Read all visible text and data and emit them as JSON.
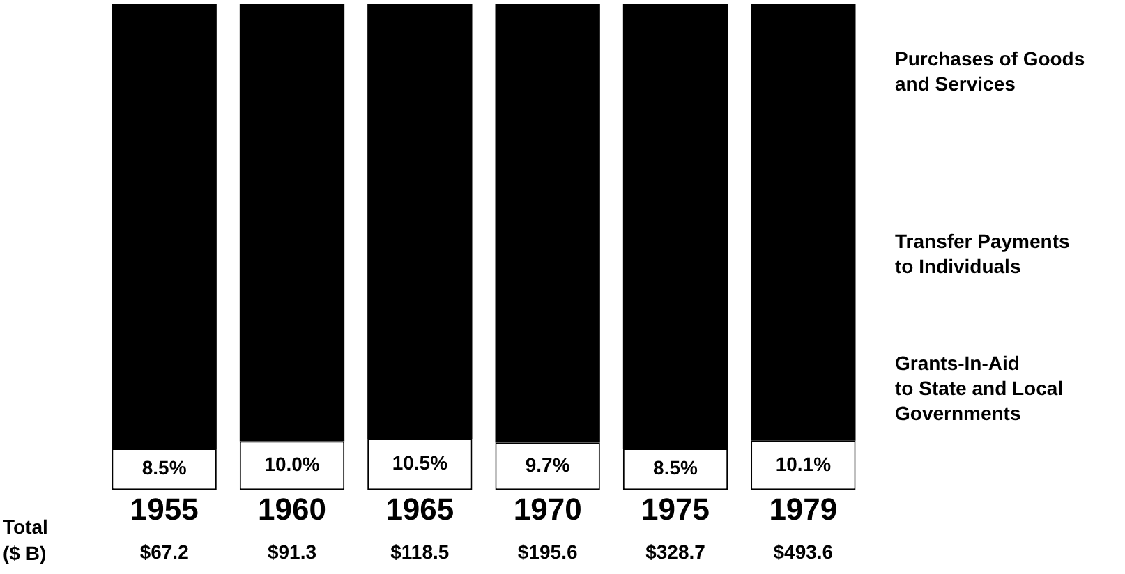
{
  "chart_data": {
    "type": "bar",
    "stacked": true,
    "categories": [
      "1955",
      "1960",
      "1965",
      "1970",
      "1975",
      "1979"
    ],
    "series": [
      {
        "name": "Grants-In-Aid\nto State and Local\nGovernments",
        "color": "#ffffff",
        "values": [
          8.5,
          10.0,
          10.5,
          9.7,
          8.5,
          10.1
        ],
        "value_labels": [
          "8.5%",
          "10.0%",
          "10.5%",
          "9.7%",
          "8.5%",
          "10.1%"
        ]
      },
      {
        "color": "#000000",
        "values": [
          91.5,
          90.0,
          89.5,
          90.3,
          91.5,
          89.9
        ]
      }
    ],
    "annotations": [
      "Total\n($ B)",
      "Purchases of Goods\nand Services",
      "Transfer Payments\nto Individuals",
      "$67.2",
      "$91.3",
      "$118.5",
      "$195.6",
      "$328.7",
      "$493.6"
    ],
    "grid": false,
    "legend": false
  }
}
